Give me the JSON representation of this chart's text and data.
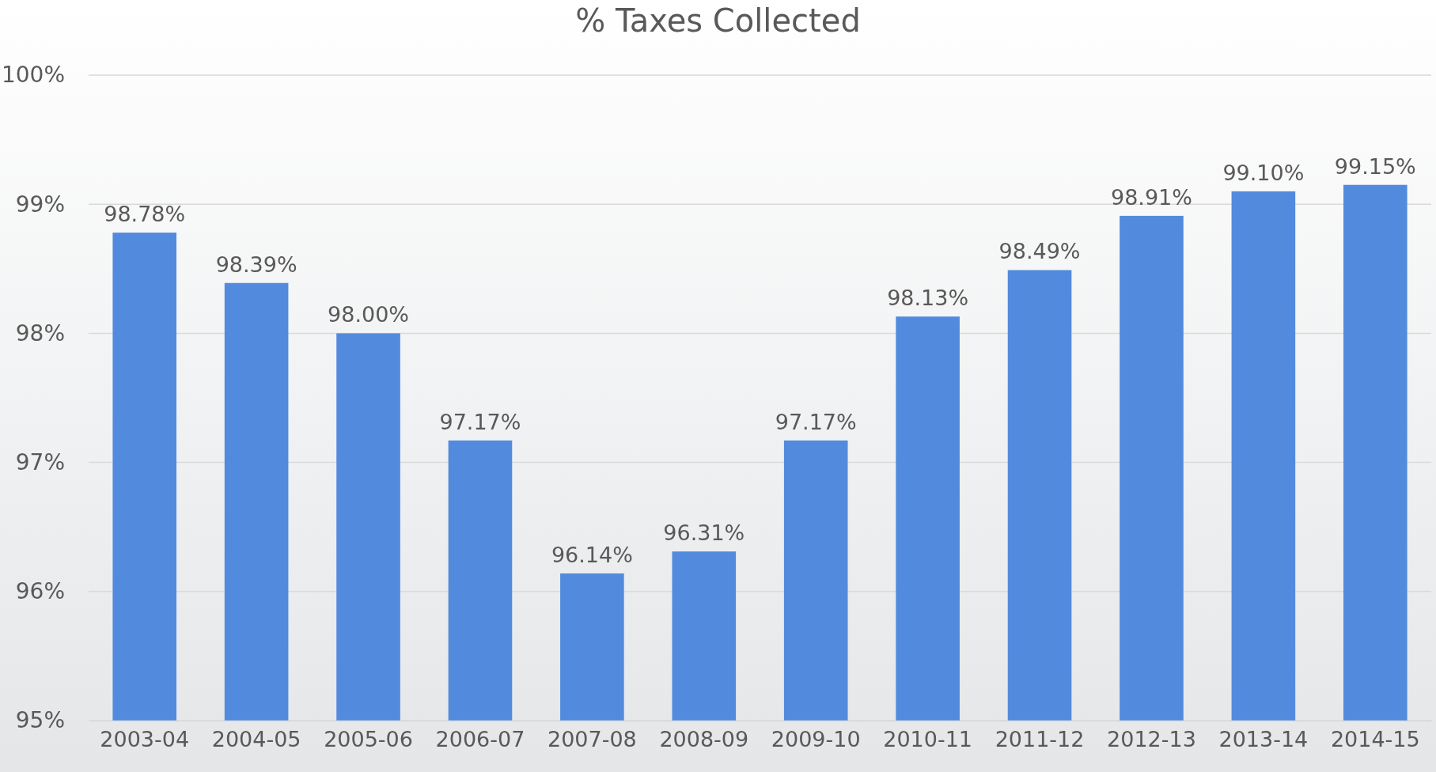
{
  "chart_data": {
    "type": "bar",
    "title": "% Taxes Collected",
    "categories": [
      "2003-04",
      "2004-05",
      "2005-06",
      "2006-07",
      "2007-08",
      "2008-09",
      "2009-10",
      "2010-11",
      "2011-12",
      "2012-13",
      "2013-14",
      "2014-15"
    ],
    "values": [
      98.78,
      98.39,
      98.0,
      97.17,
      96.14,
      96.31,
      97.17,
      98.13,
      98.49,
      98.91,
      99.1,
      99.15
    ],
    "value_labels": [
      "98.78%",
      "98.39%",
      "98.00%",
      "97.17%",
      "96.14%",
      "96.31%",
      "97.17%",
      "98.13%",
      "98.49%",
      "98.91%",
      "99.10%",
      "99.15%"
    ],
    "color": "#528bdd",
    "ylim": [
      95,
      100
    ],
    "yticks": [
      {
        "value": 95,
        "label": "95%"
      },
      {
        "value": 96,
        "label": "96%"
      },
      {
        "value": 97,
        "label": "97%"
      },
      {
        "value": 98,
        "label": "98%"
      },
      {
        "value": 99,
        "label": "99%"
      },
      {
        "value": 100,
        "label": "100%"
      }
    ],
    "grid": "y"
  }
}
